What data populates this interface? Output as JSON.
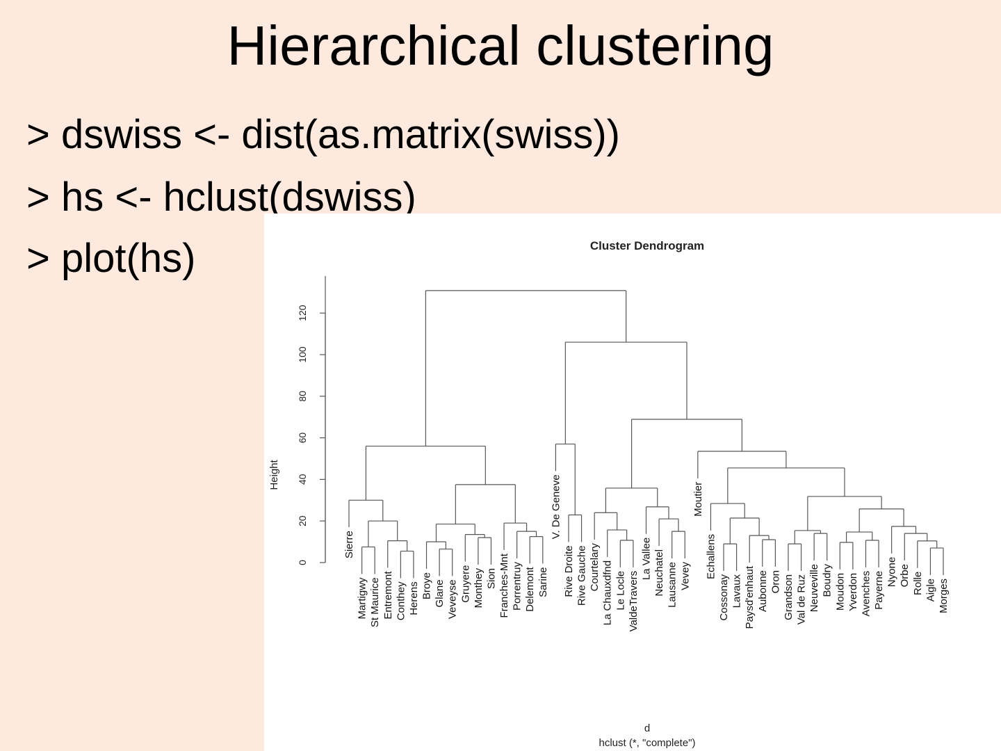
{
  "slide": {
    "title": "Hierarchical clustering",
    "code_lines": [
      "> dswiss <- dist(as.matrix(swiss))",
      "> hs <- hclust(dswiss)",
      "> plot(hs)"
    ]
  },
  "chart_data": {
    "type": "dendrogram",
    "title": "Cluster Dendrogram",
    "xlabel": "d",
    "subtitle": "hclust (*, \"complete\")",
    "ylabel": "Height",
    "ylim": [
      0,
      135
    ],
    "yticks": [
      0,
      20,
      40,
      60,
      80,
      100,
      120
    ],
    "hang": 13,
    "tree": {
      "h": 130.8,
      "c": [
        {
          "h": 56,
          "c": [
            {
              "h": 30,
              "c": [
                "Sierre",
                {
                  "h": 20,
                  "c": [
                    {
                      "h": 7.5,
                      "c": [
                        "Martigwy",
                        "St Maurice"
                      ]
                    },
                    {
                      "h": 10.5,
                      "c": [
                        "Entremont",
                        {
                          "h": 5.5,
                          "c": [
                            "Conthey",
                            "Herens"
                          ]
                        }
                      ]
                    }
                  ]
                }
              ]
            },
            {
              "h": 37.5,
              "c": [
                {
                  "h": 18.5,
                  "c": [
                    {
                      "h": 10,
                      "c": [
                        "Broye",
                        {
                          "h": 6.5,
                          "c": [
                            "Glane",
                            "Veveyse"
                          ]
                        }
                      ]
                    },
                    {
                      "h": 13.5,
                      "c": [
                        "Gruyere",
                        {
                          "h": 12,
                          "c": [
                            "Monthey",
                            "Sion"
                          ]
                        }
                      ]
                    }
                  ]
                },
                {
                  "h": 19,
                  "c": [
                    "Franches-Mnt",
                    {
                      "h": 15,
                      "c": [
                        "Porrentruy",
                        {
                          "h": 12.5,
                          "c": [
                            "Delemont",
                            "Sarine"
                          ]
                        }
                      ]
                    }
                  ]
                }
              ]
            }
          ]
        },
        {
          "h": 106,
          "c": [
            {
              "h": 57,
              "c": [
                "V. De Geneve",
                {
                  "h": 22.9,
                  "c": [
                    "Rive Droite",
                    "Rive Gauche"
                  ]
                }
              ]
            },
            {
              "h": 68.9,
              "c": [
                {
                  "h": 35.8,
                  "c": [
                    {
                      "h": 24,
                      "c": [
                        "Courtelary",
                        {
                          "h": 15.7,
                          "c": [
                            "La Chauxdfnd",
                            {
                              "h": 10.7,
                              "c": [
                                "Le Locle",
                                "ValdeTravers"
                              ]
                            }
                          ]
                        }
                      ]
                    },
                    {
                      "h": 26.8,
                      "c": [
                        "La Vallee",
                        {
                          "h": 21,
                          "c": [
                            "Neuchatel",
                            {
                              "h": 15,
                              "c": [
                                "Lausanne",
                                "Vevey"
                              ]
                            }
                          ]
                        }
                      ]
                    }
                  ]
                },
                {
                  "h": 53.5,
                  "c": [
                    "Moutier",
                    {
                      "h": 45.5,
                      "c": [
                        {
                          "h": 28.4,
                          "c": [
                            "Echallens",
                            {
                              "h": 21.4,
                              "c": [
                                {
                                  "h": 9,
                                  "c": [
                                    "Cossonay",
                                    "Lavaux"
                                  ]
                                },
                                {
                                  "h": 13,
                                  "c": [
                                    "Paysd'enhaut",
                                    {
                                      "h": 11,
                                      "c": [
                                        "Aubonne",
                                        "Oron"
                                      ]
                                    }
                                  ]
                                }
                              ]
                            }
                          ]
                        },
                        {
                          "h": 31.8,
                          "c": [
                            {
                              "h": 15.4,
                              "c": [
                                {
                                  "h": 9,
                                  "c": [
                                    "Grandson",
                                    "Val de Ruz"
                                  ]
                                },
                                {
                                  "h": 14,
                                  "c": [
                                    "Neuveville",
                                    "Boudry"
                                  ]
                                }
                              ]
                            },
                            {
                              "h": 25.8,
                              "c": [
                                {
                                  "h": 14.7,
                                  "c": [
                                    {
                                      "h": 9.7,
                                      "c": [
                                        "Moudon",
                                        "Yverdon"
                                      ]
                                    },
                                    {
                                      "h": 10.7,
                                      "c": [
                                        "Avenches",
                                        "Payerne"
                                      ]
                                    }
                                  ]
                                },
                                {
                                  "h": 17.4,
                                  "c": [
                                    "Nyone",
                                    {
                                      "h": 14,
                                      "c": [
                                        "Orbe",
                                        {
                                          "h": 10.4,
                                          "c": [
                                            "Rolle",
                                            {
                                              "h": 7,
                                              "c": [
                                                "Aigle",
                                                "Morges"
                                              ]
                                            }
                                          ]
                                        }
                                      ]
                                    }
                                  ]
                                }
                              ]
                            }
                          ]
                        }
                      ]
                    }
                  ]
                }
              ]
            }
          ]
        }
      ]
    }
  }
}
